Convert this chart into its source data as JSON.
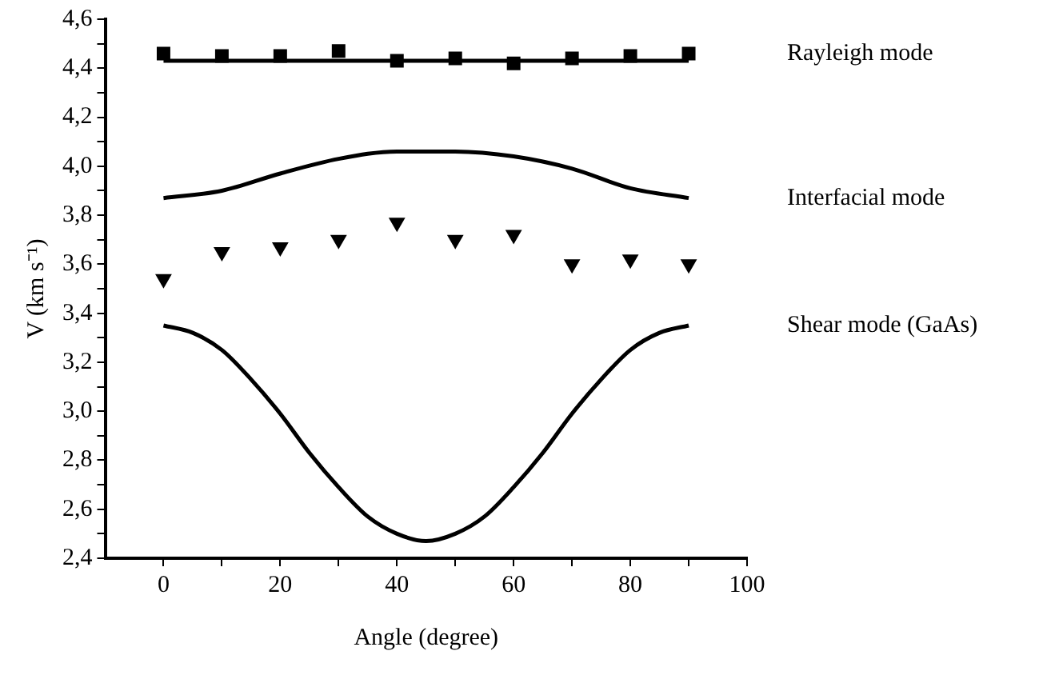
{
  "chart_data": {
    "type": "line",
    "xlabel": "Angle (degree)",
    "ylabel": "V (km s⁻¹)",
    "xlim": [
      -10,
      100
    ],
    "xticks": [
      0,
      {
        "value": 10,
        "label": null
      },
      20,
      {
        "value": 30,
        "label": null
      },
      40,
      {
        "value": 50,
        "label": null
      },
      60,
      {
        "value": 70,
        "label": null
      },
      80,
      {
        "value": 90,
        "label": null
      },
      100
    ],
    "ylim": [
      2.4,
      4.6
    ],
    "yticks": [
      {
        "value": 2.4,
        "label": "2,4"
      },
      {
        "value": 2.5,
        "label": null
      },
      {
        "value": 2.6,
        "label": "2,6"
      },
      {
        "value": 2.7,
        "label": null
      },
      {
        "value": 2.8,
        "label": "2,8"
      },
      {
        "value": 2.9,
        "label": null
      },
      {
        "value": 3.0,
        "label": "3,0"
      },
      {
        "value": 3.1,
        "label": null
      },
      {
        "value": 3.2,
        "label": "3,2"
      },
      {
        "value": 3.3,
        "label": null
      },
      {
        "value": 3.4,
        "label": "3,4"
      },
      {
        "value": 3.5,
        "label": null
      },
      {
        "value": 3.6,
        "label": "3,6"
      },
      {
        "value": 3.7,
        "label": null
      },
      {
        "value": 3.8,
        "label": "3,8"
      },
      {
        "value": 3.9,
        "label": null
      },
      {
        "value": 4.0,
        "label": "4,0"
      },
      {
        "value": 4.1,
        "label": null
      },
      {
        "value": 4.2,
        "label": "4,2"
      },
      {
        "value": 4.3,
        "label": null
      },
      {
        "value": 4.4,
        "label": "4,4"
      },
      {
        "value": 4.5,
        "label": null
      },
      {
        "value": 4.6,
        "label": "4,6"
      }
    ],
    "grid": false,
    "legend": false,
    "series": [
      {
        "name": "Rayleigh mode",
        "type": "scatter",
        "marker": "square",
        "color": "#000000",
        "x": [
          0,
          10,
          20,
          30,
          40,
          50,
          60,
          70,
          80,
          90
        ],
        "values": [
          4.46,
          4.45,
          4.45,
          4.47,
          4.43,
          4.44,
          4.42,
          4.44,
          4.45,
          4.46
        ]
      },
      {
        "type": "line",
        "marker": "none",
        "color": "#000000",
        "x": [
          0,
          90
        ],
        "values": [
          4.43,
          4.43
        ]
      },
      {
        "name": "Interfacial mode",
        "type": "line",
        "marker": "none",
        "color": "#000000",
        "x": [
          0,
          10,
          20,
          30,
          40,
          45,
          50,
          60,
          70,
          80,
          90
        ],
        "values": [
          3.87,
          3.9,
          3.97,
          4.03,
          4.06,
          4.06,
          4.06,
          4.04,
          3.99,
          3.91,
          3.87
        ]
      },
      {
        "type": "scatter",
        "marker": "triangle",
        "color": "#000000",
        "x": [
          0,
          10,
          20,
          30,
          40,
          50,
          60,
          70,
          80,
          90
        ],
        "values": [
          3.54,
          3.65,
          3.67,
          3.7,
          3.77,
          3.7,
          3.72,
          3.6,
          3.62,
          3.6
        ]
      },
      {
        "name": "Shear mode (GaAs)",
        "type": "line",
        "marker": "none",
        "color": "#000000",
        "x": [
          0,
          5,
          10,
          15,
          20,
          25,
          30,
          35,
          40,
          45,
          50,
          55,
          60,
          65,
          70,
          75,
          80,
          85,
          90
        ],
        "values": [
          3.35,
          3.32,
          3.25,
          3.13,
          2.99,
          2.83,
          2.69,
          2.57,
          2.5,
          2.47,
          2.5,
          2.57,
          2.69,
          2.83,
          2.99,
          3.13,
          3.25,
          3.32,
          3.35
        ]
      }
    ]
  }
}
